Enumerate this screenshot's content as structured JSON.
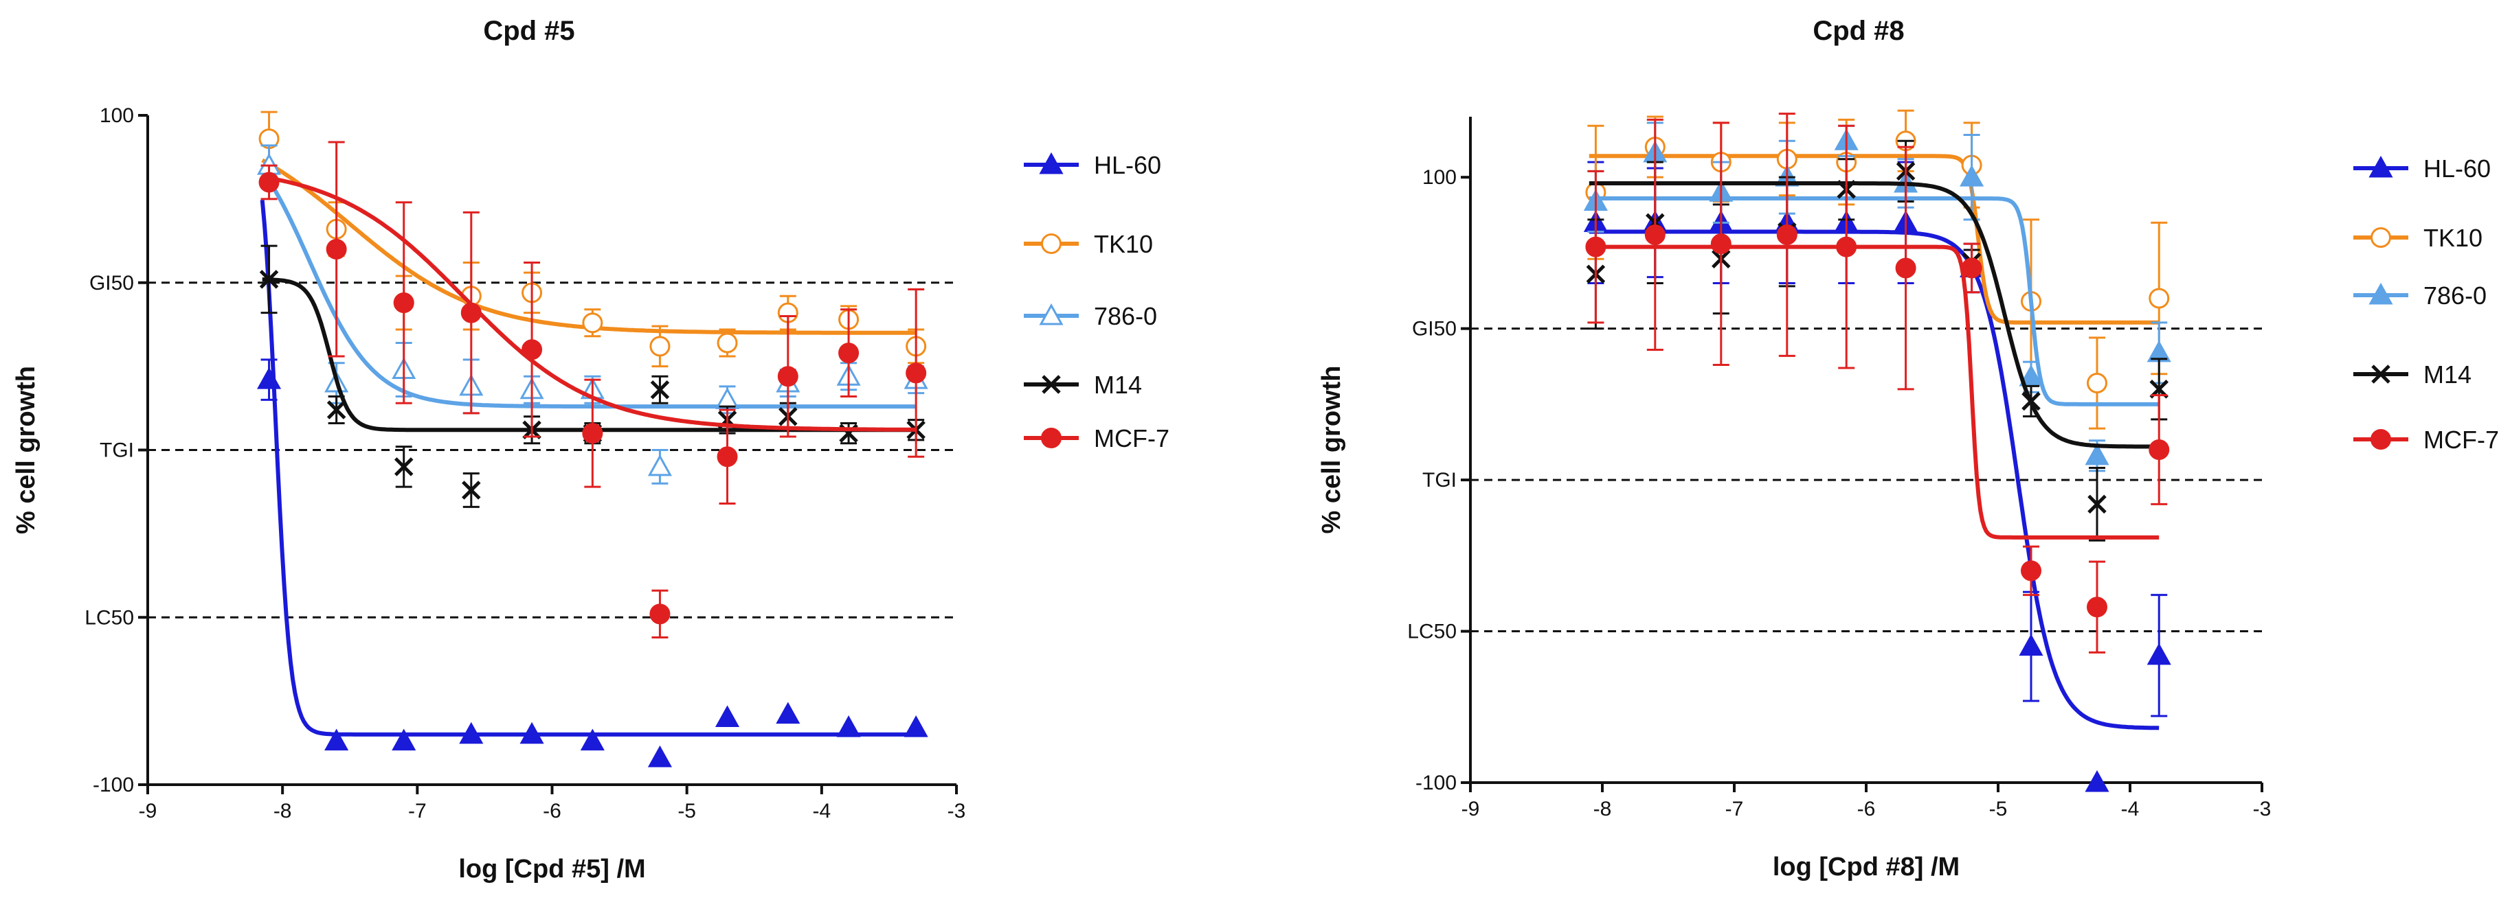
{
  "chart_data": [
    {
      "type": "scatter",
      "title": "Cpd #5",
      "xlabel": "log [Cpd #5] /M",
      "ylabel": "% cell growth",
      "xlim": [
        -9,
        -3
      ],
      "ylim": [
        -100,
        100
      ],
      "xticks": [
        -9,
        -8,
        -7,
        -6,
        -5,
        -4,
        -3
      ],
      "yticks": [
        {
          "value": 100,
          "label": "100"
        },
        {
          "value": 50,
          "label": "GI50"
        },
        {
          "value": 0,
          "label": "TGI"
        },
        {
          "value": -50,
          "label": "LC50"
        },
        {
          "value": -100,
          "label": "-100"
        }
      ],
      "reference_lines": [
        50,
        0,
        -50
      ],
      "legend_position": "right",
      "series": [
        {
          "name": "HL-60",
          "color": "#1a1ad9",
          "marker": "triangle",
          "points": [
            {
              "x": -8.1,
              "y": 21,
              "err": 6
            },
            {
              "x": -7.6,
              "y": -87,
              "err": 0
            },
            {
              "x": -7.1,
              "y": -87,
              "err": 0
            },
            {
              "x": -6.6,
              "y": -85,
              "err": 0
            },
            {
              "x": -6.15,
              "y": -85,
              "err": 0
            },
            {
              "x": -5.7,
              "y": -87,
              "err": 0
            },
            {
              "x": -5.2,
              "y": -92,
              "err": 0
            },
            {
              "x": -4.7,
              "y": -80,
              "err": 0
            },
            {
              "x": -4.25,
              "y": -79,
              "err": 0
            },
            {
              "x": -3.8,
              "y": -83,
              "err": 0
            },
            {
              "x": -3.3,
              "y": -83,
              "err": 0
            }
          ],
          "fit": {
            "top": 100,
            "bottom": -85,
            "logEC50": -8.05,
            "hill": 8
          }
        },
        {
          "name": "TK10",
          "color": "#f28c1c",
          "marker": "open-circle",
          "points": [
            {
              "x": -8.1,
              "y": 93,
              "err": 8
            },
            {
              "x": -7.6,
              "y": 66,
              "err": 8
            },
            {
              "x": -7.1,
              "y": 44,
              "err": 8
            },
            {
              "x": -6.6,
              "y": 46,
              "err": 10
            },
            {
              "x": -6.15,
              "y": 47,
              "err": 6
            },
            {
              "x": -5.7,
              "y": 38,
              "err": 4
            },
            {
              "x": -5.2,
              "y": 31,
              "err": 6
            },
            {
              "x": -4.7,
              "y": 32,
              "err": 4
            },
            {
              "x": -4.25,
              "y": 41,
              "err": 5
            },
            {
              "x": -3.8,
              "y": 39,
              "err": 4
            },
            {
              "x": -3.3,
              "y": 31,
              "err": 5
            }
          ],
          "fit": {
            "top": 100,
            "bottom": 35,
            "logEC50": -7.5,
            "hill": 0.9
          }
        },
        {
          "name": "786-0",
          "color": "#5da3e6",
          "marker": "open-triangle",
          "points": [
            {
              "x": -8.1,
              "y": 85,
              "err": 6
            },
            {
              "x": -7.6,
              "y": 20,
              "err": 6
            },
            {
              "x": -7.1,
              "y": 24,
              "err": 8
            },
            {
              "x": -6.6,
              "y": 19,
              "err": 8
            },
            {
              "x": -6.15,
              "y": 18,
              "err": 4
            },
            {
              "x": -5.7,
              "y": 18,
              "err": 4
            },
            {
              "x": -5.2,
              "y": -5,
              "err": 5
            },
            {
              "x": -4.7,
              "y": 15,
              "err": 4
            },
            {
              "x": -4.25,
              "y": 20,
              "err": 4
            },
            {
              "x": -3.8,
              "y": 22,
              "err": 4
            },
            {
              "x": -3.3,
              "y": 21,
              "err": 4
            }
          ],
          "fit": {
            "top": 100,
            "bottom": 13,
            "logEC50": -7.8,
            "hill": 1.8
          }
        },
        {
          "name": "M14",
          "color": "#111111",
          "marker": "x",
          "points": [
            {
              "x": -8.1,
              "y": 51,
              "err": 10
            },
            {
              "x": -7.6,
              "y": 12,
              "err": 4
            },
            {
              "x": -7.1,
              "y": -5,
              "err": 6
            },
            {
              "x": -6.6,
              "y": -12,
              "err": 5
            },
            {
              "x": -6.15,
              "y": 6,
              "err": 4
            },
            {
              "x": -5.7,
              "y": 5,
              "err": 3
            },
            {
              "x": -5.2,
              "y": 18,
              "err": 4
            },
            {
              "x": -4.7,
              "y": 9,
              "err": 4
            },
            {
              "x": -4.25,
              "y": 10,
              "err": 4
            },
            {
              "x": -3.8,
              "y": 5,
              "err": 3
            },
            {
              "x": -3.3,
              "y": 6,
              "err": 3
            }
          ],
          "fit": {
            "top": 51,
            "bottom": 6,
            "logEC50": -7.65,
            "hill": 6
          }
        },
        {
          "name": "MCF-7",
          "color": "#e02020",
          "marker": "circle",
          "points": [
            {
              "x": -8.1,
              "y": 80,
              "err": 5
            },
            {
              "x": -7.6,
              "y": 60,
              "err": 32
            },
            {
              "x": -7.1,
              "y": 44,
              "err": 30
            },
            {
              "x": -6.6,
              "y": 41,
              "err": 30
            },
            {
              "x": -6.15,
              "y": 30,
              "err": 26
            },
            {
              "x": -5.7,
              "y": 5,
              "err": 16
            },
            {
              "x": -5.2,
              "y": -49,
              "err": 7
            },
            {
              "x": -4.7,
              "y": -2,
              "err": 14
            },
            {
              "x": -4.25,
              "y": 22,
              "err": 18
            },
            {
              "x": -3.8,
              "y": 29,
              "err": 13
            },
            {
              "x": -3.3,
              "y": 23,
              "err": 25
            }
          ],
          "fit": {
            "top": 85,
            "bottom": 6,
            "logEC50": -6.65,
            "hill": 0.9
          }
        }
      ]
    },
    {
      "type": "scatter",
      "title": "Cpd #8",
      "xlabel": "log [Cpd #8] /M",
      "ylabel": "% cell growth",
      "xlim": [
        -9,
        -3
      ],
      "ylim": [
        -100,
        120
      ],
      "xticks": [
        -9,
        -8,
        -7,
        -6,
        -5,
        -4,
        -3
      ],
      "yticks": [
        {
          "value": 100,
          "label": "100"
        },
        {
          "value": 50,
          "label": "GI50"
        },
        {
          "value": 0,
          "label": "TGI"
        },
        {
          "value": -50,
          "label": "LC50"
        },
        {
          "value": -100,
          "label": "-100"
        }
      ],
      "reference_lines": [
        50,
        0,
        -50
      ],
      "legend_position": "right",
      "series": [
        {
          "name": "HL-60",
          "color": "#1a1ad9",
          "marker": "triangle",
          "points": [
            {
              "x": -8.05,
              "y": 85,
              "err": 20
            },
            {
              "x": -7.6,
              "y": 85,
              "err": 18
            },
            {
              "x": -7.1,
              "y": 85,
              "err": 20
            },
            {
              "x": -6.6,
              "y": 85,
              "err": 20
            },
            {
              "x": -6.15,
              "y": 85,
              "err": 20
            },
            {
              "x": -5.7,
              "y": 85,
              "err": 20
            },
            {
              "x": -5.2,
              "y": 70,
              "err": 8
            },
            {
              "x": -4.75,
              "y": -55,
              "err": 18
            },
            {
              "x": -4.25,
              "y": -100,
              "err": 0
            },
            {
              "x": -3.78,
              "y": -58,
              "err": 20
            }
          ],
          "fit": {
            "top": 82,
            "bottom": -82,
            "logEC50": -4.85,
            "hill": 3.2
          }
        },
        {
          "name": "TK10",
          "color": "#f28c1c",
          "marker": "open-circle",
          "points": [
            {
              "x": -8.05,
              "y": 95,
              "err": 22
            },
            {
              "x": -7.6,
              "y": 110,
              "err": 10
            },
            {
              "x": -7.1,
              "y": 105,
              "err": 13
            },
            {
              "x": -6.6,
              "y": 106,
              "err": 12
            },
            {
              "x": -6.15,
              "y": 105,
              "err": 14
            },
            {
              "x": -5.7,
              "y": 112,
              "err": 10
            },
            {
              "x": -5.2,
              "y": 104,
              "err": 14
            },
            {
              "x": -4.75,
              "y": 59,
              "err": 27
            },
            {
              "x": -4.25,
              "y": 32,
              "err": 15
            },
            {
              "x": -3.78,
              "y": 60,
              "err": 25
            }
          ],
          "fit": {
            "top": 107,
            "bottom": 52,
            "logEC50": -5.15,
            "hill": 12
          }
        },
        {
          "name": "786-0",
          "color": "#5da3e6",
          "marker": "triangle",
          "points": [
            {
              "x": -8.05,
              "y": 92,
              "err": 10
            },
            {
              "x": -7.6,
              "y": 108,
              "err": 10
            },
            {
              "x": -7.1,
              "y": 95,
              "err": 10
            },
            {
              "x": -6.6,
              "y": 100,
              "err": 12
            },
            {
              "x": -6.15,
              "y": 112,
              "err": 5
            },
            {
              "x": -5.7,
              "y": 98,
              "err": 8
            },
            {
              "x": -5.2,
              "y": 100,
              "err": 14
            },
            {
              "x": -4.75,
              "y": 34,
              "err": 5
            },
            {
              "x": -4.25,
              "y": 8,
              "err": 5
            },
            {
              "x": -3.78,
              "y": 42,
              "err": 10
            }
          ],
          "fit": {
            "top": 93,
            "bottom": 25,
            "logEC50": -4.75,
            "hill": 12
          }
        },
        {
          "name": "M14",
          "color": "#111111",
          "marker": "x",
          "points": [
            {
              "x": -8.05,
              "y": 68,
              "err": 18
            },
            {
              "x": -7.6,
              "y": 85,
              "err": 20
            },
            {
              "x": -7.1,
              "y": 73,
              "err": 18
            },
            {
              "x": -6.6,
              "y": 82,
              "err": 18
            },
            {
              "x": -6.15,
              "y": 96,
              "err": 10
            },
            {
              "x": -5.7,
              "y": 102,
              "err": 10
            },
            {
              "x": -5.2,
              "y": 72,
              "err": 4
            },
            {
              "x": -4.75,
              "y": 26,
              "err": 5
            },
            {
              "x": -4.25,
              "y": -8,
              "err": 12
            },
            {
              "x": -3.78,
              "y": 30,
              "err": 10
            }
          ],
          "fit": {
            "top": 98,
            "bottom": 11,
            "logEC50": -4.95,
            "hill": 3.5
          }
        },
        {
          "name": "MCF-7",
          "color": "#e02020",
          "marker": "circle",
          "points": [
            {
              "x": -8.05,
              "y": 77,
              "err": 25
            },
            {
              "x": -7.6,
              "y": 81,
              "err": 38
            },
            {
              "x": -7.1,
              "y": 78,
              "err": 40
            },
            {
              "x": -6.6,
              "y": 81,
              "err": 40
            },
            {
              "x": -6.15,
              "y": 77,
              "err": 40
            },
            {
              "x": -5.7,
              "y": 70,
              "err": 40
            },
            {
              "x": -5.2,
              "y": 70,
              "err": 8
            },
            {
              "x": -4.75,
              "y": -30,
              "err": 8
            },
            {
              "x": -4.25,
              "y": -42,
              "err": 15
            },
            {
              "x": -3.78,
              "y": 10,
              "err": 18
            }
          ],
          "fit": {
            "top": 77,
            "bottom": -19,
            "logEC50": -5.2,
            "hill": 15
          }
        }
      ]
    }
  ]
}
